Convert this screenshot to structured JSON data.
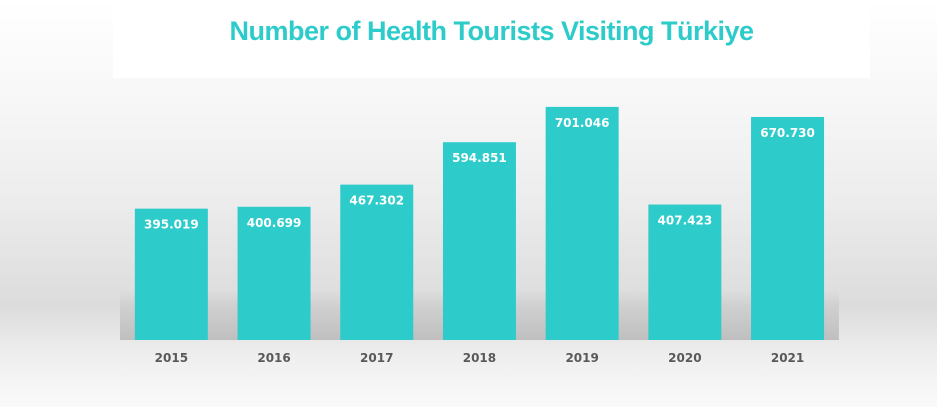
{
  "chart_data": {
    "type": "bar",
    "title": "Number of Health Tourists Visiting Türkiye",
    "categories": [
      "2015",
      "2016",
      "2017",
      "2018",
      "2019",
      "2020",
      "2021"
    ],
    "values": [
      395019,
      400699,
      467302,
      594851,
      701046,
      407423,
      670730
    ],
    "data_labels": [
      "395.019",
      "400.699",
      "467.302",
      "594.851",
      "701.046",
      "407.423",
      "670.730"
    ],
    "xlabel": "",
    "ylabel": "",
    "ylim": [
      0,
      800000
    ],
    "grid": false,
    "legend": "none",
    "colors": {
      "bar": "#2ecbcb",
      "title": "#2ecbcb",
      "tick": "#595959",
      "label": "#ffffff"
    }
  }
}
